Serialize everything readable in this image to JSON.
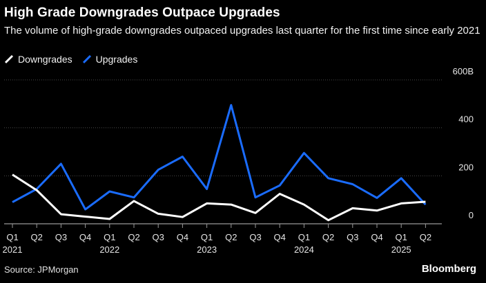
{
  "title": "High Grade Downgrades Outpace Upgrades",
  "subtitle": "The volume of high-grade downgrades outpaced upgrades last quarter for the first time since early 2021",
  "source": "Source: JPMorgan",
  "brand": "Bloomberg",
  "chart_data": {
    "type": "line",
    "categories": [
      "Q1 2021",
      "Q2 2021",
      "Q3 2021",
      "Q4 2021",
      "Q1 2022",
      "Q2 2022",
      "Q3 2022",
      "Q4 2022",
      "Q1 2023",
      "Q2 2023",
      "Q3 2023",
      "Q4 2023",
      "Q1 2024",
      "Q2 2024",
      "Q3 2024",
      "Q4 2024",
      "Q1 2025",
      "Q2 2025"
    ],
    "x_tick_quarters": [
      "Q1",
      "Q2",
      "Q3",
      "Q4",
      "Q1",
      "Q2",
      "Q3",
      "Q4",
      "Q1",
      "Q2",
      "Q3",
      "Q4",
      "Q1",
      "Q2",
      "Q3",
      "Q4",
      "Q1",
      "Q2"
    ],
    "x_tick_years": [
      "2021",
      "",
      "",
      "",
      "2022",
      "",
      "",
      "",
      "2023",
      "",
      "",
      "",
      "2024",
      "",
      "",
      "",
      "2025",
      ""
    ],
    "series": [
      {
        "name": "Downgrades",
        "color": "#ffffff",
        "values": [
          205,
          140,
          40,
          30,
          20,
          95,
          42,
          28,
          85,
          80,
          45,
          125,
          80,
          15,
          65,
          55,
          85,
          92
        ]
      },
      {
        "name": "Upgrades",
        "color": "#1a6cff",
        "values": [
          90,
          145,
          250,
          60,
          135,
          110,
          225,
          280,
          145,
          495,
          110,
          160,
          295,
          190,
          165,
          108,
          190,
          80
        ]
      }
    ],
    "y_ticks": [
      {
        "value": 0,
        "label": "0"
      },
      {
        "value": 200,
        "label": "200"
      },
      {
        "value": 400,
        "label": "400"
      },
      {
        "value": 600,
        "label": "600B"
      }
    ],
    "ylim": [
      0,
      600
    ],
    "grid": true,
    "legend": "top-left"
  }
}
